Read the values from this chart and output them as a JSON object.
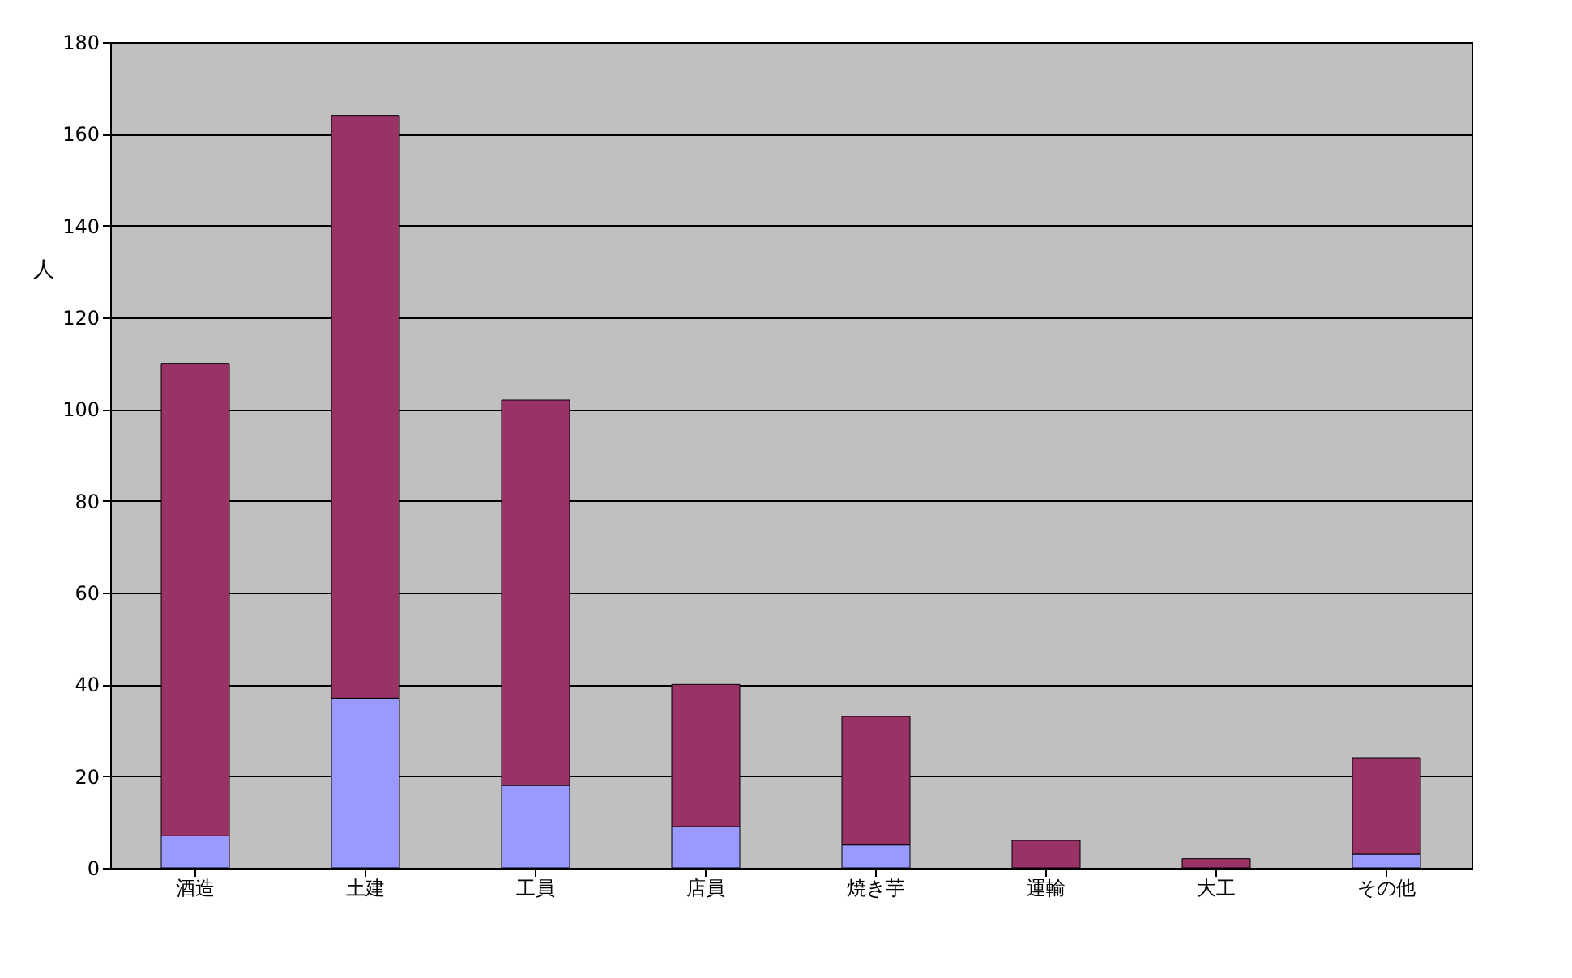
{
  "chart_data": {
    "type": "bar",
    "ylabel": "人",
    "stacked": true,
    "grid": "y",
    "categories": [
      "酒造",
      "土建",
      "工員",
      "店員",
      "焼き芋",
      "運輸",
      "大工",
      "その他"
    ],
    "series": [
      {
        "color": "#9999ff",
        "values": [
          7,
          37,
          18,
          9,
          5,
          0,
          0,
          3
        ]
      },
      {
        "color": "#993366",
        "values": [
          103,
          127,
          84,
          31,
          28,
          6,
          2,
          21
        ]
      }
    ],
    "ylim": [
      0,
      180
    ],
    "yticks": [
      0,
      20,
      40,
      60,
      80,
      100,
      120,
      140,
      160,
      180
    ]
  }
}
